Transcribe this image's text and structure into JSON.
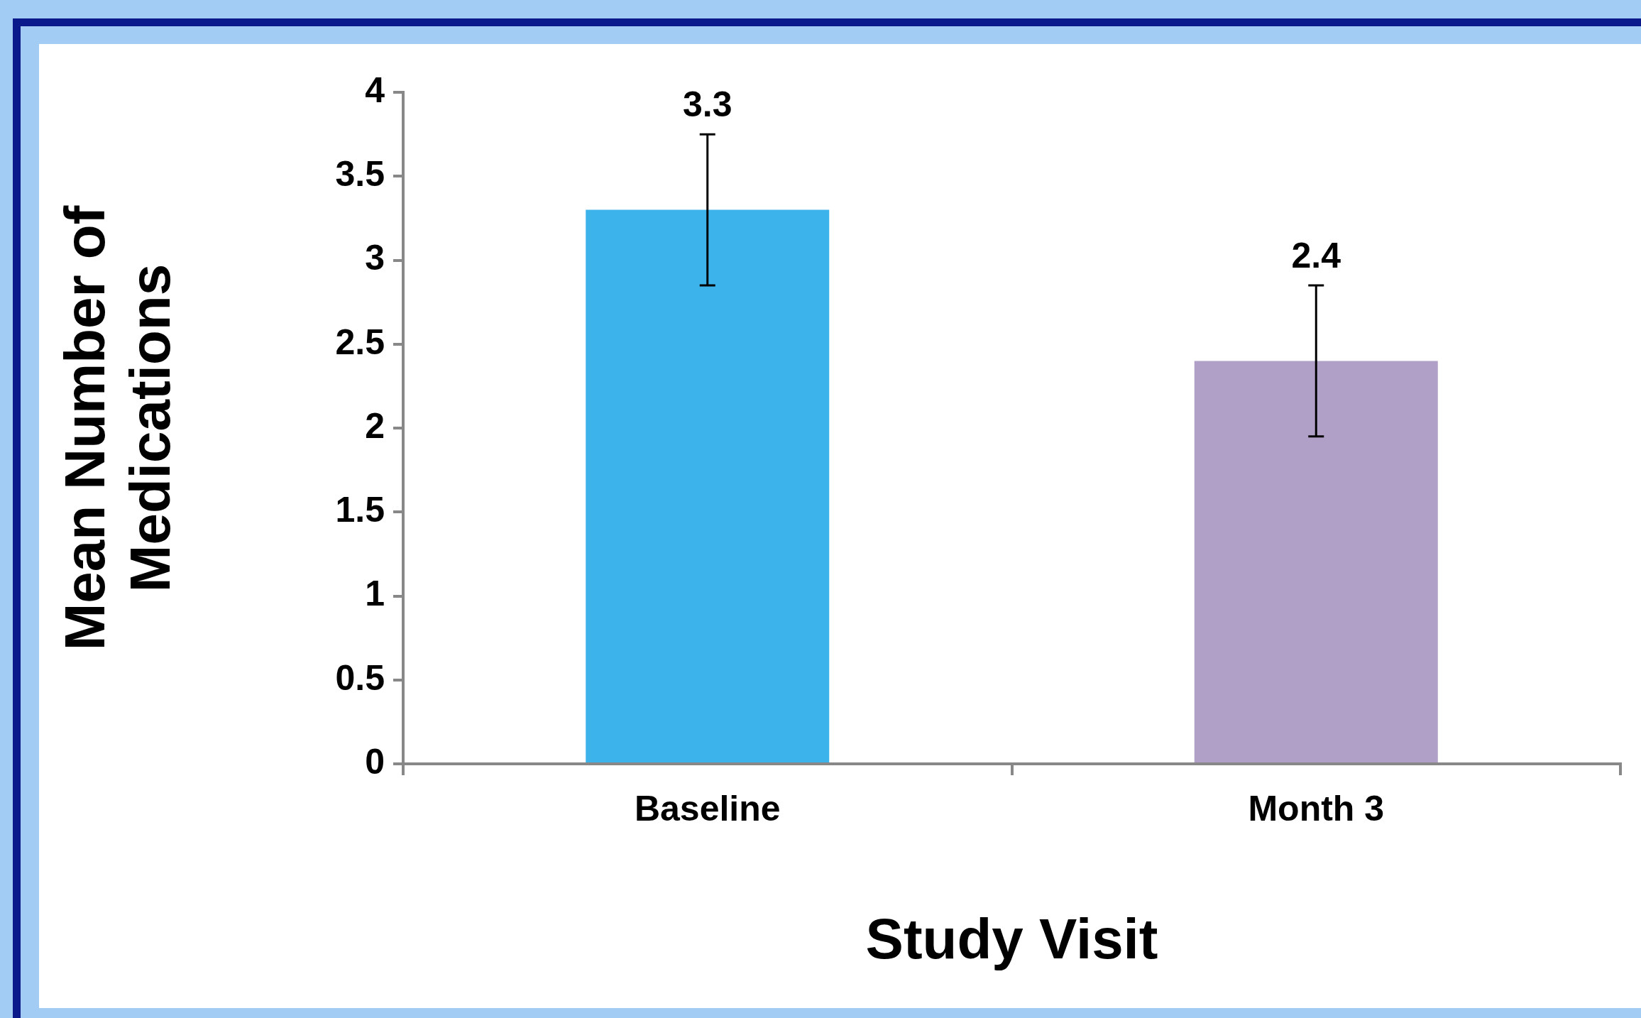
{
  "chart_data": {
    "type": "bar",
    "xlabel": "Study Visit",
    "ylabel": "Mean Number of Medications",
    "categories": [
      "Baseline",
      "Month 3"
    ],
    "values": [
      3.3,
      2.4
    ],
    "colors": [
      "#3db3ec",
      "#b09fc6"
    ],
    "errors": [
      0.45,
      0.45
    ],
    "data_labels": true,
    "ylim": [
      0,
      4
    ],
    "yticks": [
      0,
      0.5,
      1,
      1.5,
      2,
      2.5,
      3,
      3.5,
      4
    ],
    "grid": false,
    "legend": false
  }
}
